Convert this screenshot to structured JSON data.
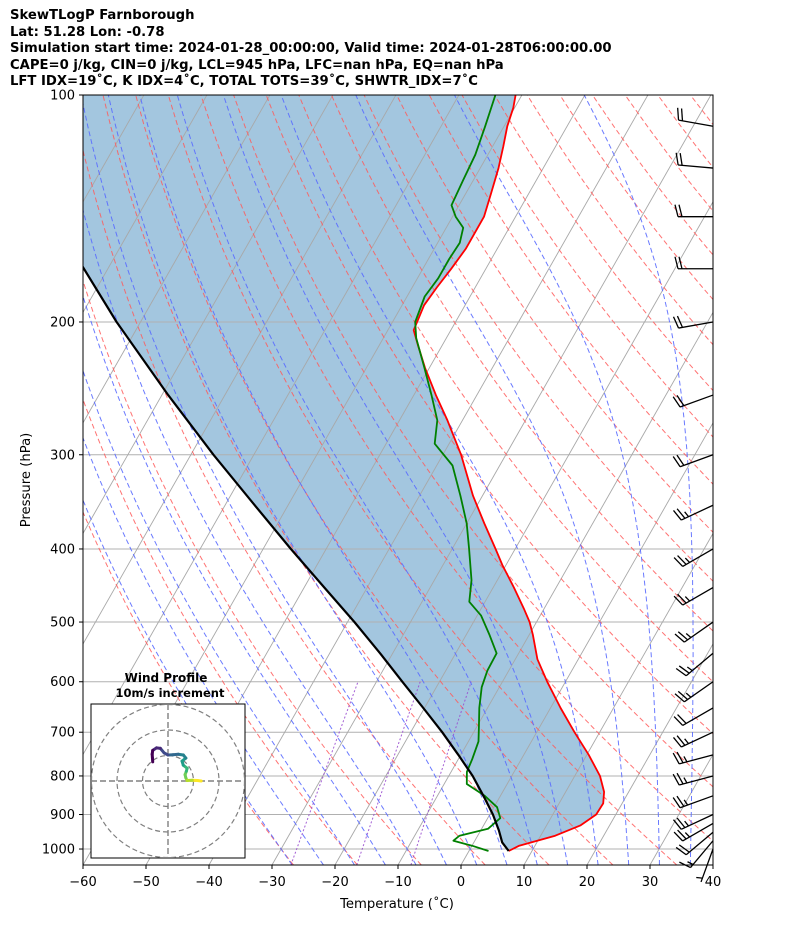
{
  "header": {
    "line1": "SkewTLogP Farnborough",
    "line2": "Lat: 51.28   Lon: -0.78",
    "line3": "Simulation start time: 2024-01-28_00:00:00, Valid time: 2024-01-28T06:00:00.00",
    "line4": "CAPE=0 j/kg, CIN=0 j/kg, LCL=945 hPa, LFC=nan hPa, EQ=nan hPa",
    "line5": "LFT IDX=19˚C, K IDX=4˚C, TOTAL TOTS=39˚C, SHWTR_IDX=7˚C"
  },
  "chart_data": {
    "type": "line",
    "title": "SkewTLogP Farnborough",
    "xlabel": "Temperature (˚C)",
    "ylabel": "Pressure (hPa)",
    "xlim": [
      -60,
      40
    ],
    "ylim": [
      1050,
      100
    ],
    "y_scale": "log",
    "x_ticks": [
      "−60",
      "−50",
      "−40",
      "−30",
      "−20",
      "−10",
      "0",
      "10",
      "20",
      "30",
      "40"
    ],
    "y_ticks": [
      "100",
      "200",
      "300",
      "400",
      "500",
      "600",
      "700",
      "800",
      "900",
      "1000"
    ],
    "grid": true,
    "shaded_region_color": "#a3c6df",
    "series": [
      {
        "color": "#ff0000",
        "style": "solid",
        "values": [
          [
            1006,
            6.3
          ],
          [
            990,
            7.5
          ],
          [
            960,
            12.3
          ],
          [
            930,
            15.4
          ],
          [
            900,
            16.9
          ],
          [
            870,
            17.0
          ],
          [
            840,
            16.1
          ],
          [
            800,
            14.0
          ],
          [
            750,
            10.3
          ],
          [
            700,
            6.0
          ],
          [
            650,
            1.6
          ],
          [
            600,
            -2.9
          ],
          [
            560,
            -6.5
          ],
          [
            520,
            -9.4
          ],
          [
            500,
            -11.1
          ],
          [
            480,
            -13.2
          ],
          [
            450,
            -16.7
          ],
          [
            420,
            -20.6
          ],
          [
            400,
            -23.1
          ],
          [
            370,
            -27.2
          ],
          [
            340,
            -31.5
          ],
          [
            300,
            -37.1
          ],
          [
            270,
            -42.4
          ],
          [
            250,
            -46.5
          ],
          [
            230,
            -50.7
          ],
          [
            215,
            -53.8
          ],
          [
            205,
            -55.9
          ],
          [
            190,
            -56.5
          ],
          [
            180,
            -56.1
          ],
          [
            170,
            -55.5
          ],
          [
            160,
            -55.0
          ],
          [
            145,
            -55.0
          ],
          [
            135,
            -56.0
          ],
          [
            125,
            -57.1
          ],
          [
            117,
            -58.3
          ],
          [
            110,
            -59.5
          ],
          [
            104,
            -60.2
          ],
          [
            100,
            -61.0
          ]
        ]
      },
      {
        "color": "#008000",
        "style": "solid",
        "values": [
          [
            1006,
            3.1
          ],
          [
            990,
            0.0
          ],
          [
            975,
            -3.4
          ],
          [
            960,
            -2.9
          ],
          [
            940,
            1.0
          ],
          [
            910,
            2.0
          ],
          [
            880,
            0.5
          ],
          [
            850,
            -2.5
          ],
          [
            820,
            -6.4
          ],
          [
            790,
            -7.5
          ],
          [
            760,
            -7.8
          ],
          [
            720,
            -8.4
          ],
          [
            690,
            -9.6
          ],
          [
            650,
            -11.3
          ],
          [
            610,
            -12.8
          ],
          [
            580,
            -13.4
          ],
          [
            550,
            -13.5
          ],
          [
            520,
            -16.3
          ],
          [
            490,
            -19.4
          ],
          [
            470,
            -22.5
          ],
          [
            440,
            -24.1
          ],
          [
            400,
            -27.3
          ],
          [
            370,
            -30.0
          ],
          [
            340,
            -33.5
          ],
          [
            310,
            -37.5
          ],
          [
            290,
            -42.3
          ],
          [
            270,
            -44.0
          ],
          [
            250,
            -47.2
          ],
          [
            230,
            -50.8
          ],
          [
            210,
            -54.8
          ],
          [
            200,
            -56.4
          ],
          [
            185,
            -57.2
          ],
          [
            175,
            -56.7
          ],
          [
            165,
            -56.7
          ],
          [
            157,
            -56.5
          ],
          [
            150,
            -57.3
          ],
          [
            145,
            -59.5
          ],
          [
            140,
            -61.2
          ],
          [
            130,
            -61.6
          ],
          [
            120,
            -62.0
          ],
          [
            110,
            -63.0
          ],
          [
            100,
            -64.2
          ]
        ]
      },
      {
        "color": "#000000",
        "style": "solid",
        "values": [
          [
            1006,
            6.3
          ],
          [
            980,
            4.5
          ],
          [
            945,
            2.9
          ],
          [
            900,
            0.5
          ],
          [
            850,
            -2.7
          ],
          [
            800,
            -6.2
          ],
          [
            750,
            -10.4
          ],
          [
            700,
            -15.0
          ],
          [
            650,
            -20.2
          ],
          [
            600,
            -25.9
          ],
          [
            550,
            -32.0
          ],
          [
            500,
            -38.9
          ],
          [
            450,
            -46.8
          ],
          [
            400,
            -55.6
          ],
          [
            350,
            -65.3
          ],
          [
            300,
            -76.4
          ],
          [
            250,
            -89.0
          ],
          [
            200,
            -103.8
          ],
          [
            150,
            -121.5
          ],
          [
            100,
            -143.6
          ]
        ]
      }
    ],
    "wind_barbs": [
      {
        "p": 1000,
        "dir": 200,
        "speed_kt": 5
      },
      {
        "p": 975,
        "dir": 220,
        "speed_kt": 15
      },
      {
        "p": 950,
        "dir": 230,
        "speed_kt": 20
      },
      {
        "p": 925,
        "dir": 240,
        "speed_kt": 25
      },
      {
        "p": 900,
        "dir": 245,
        "speed_kt": 25
      },
      {
        "p": 850,
        "dir": 250,
        "speed_kt": 25
      },
      {
        "p": 800,
        "dir": 255,
        "speed_kt": 25
      },
      {
        "p": 750,
        "dir": 255,
        "speed_kt": 25
      },
      {
        "p": 700,
        "dir": 245,
        "speed_kt": 25
      },
      {
        "p": 650,
        "dir": 240,
        "speed_kt": 20
      },
      {
        "p": 600,
        "dir": 235,
        "speed_kt": 25
      },
      {
        "p": 550,
        "dir": 230,
        "speed_kt": 25
      },
      {
        "p": 500,
        "dir": 235,
        "speed_kt": 25
      },
      {
        "p": 450,
        "dir": 240,
        "speed_kt": 25
      },
      {
        "p": 400,
        "dir": 240,
        "speed_kt": 25
      },
      {
        "p": 350,
        "dir": 245,
        "speed_kt": 25
      },
      {
        "p": 300,
        "dir": 250,
        "speed_kt": 20
      },
      {
        "p": 250,
        "dir": 250,
        "speed_kt": 20
      },
      {
        "p": 200,
        "dir": 260,
        "speed_kt": 20
      },
      {
        "p": 170,
        "dir": 270,
        "speed_kt": 20
      },
      {
        "p": 145,
        "dir": 270,
        "speed_kt": 20
      },
      {
        "p": 125,
        "dir": 275,
        "speed_kt": 20
      },
      {
        "p": 110,
        "dir": 280,
        "speed_kt": 20
      }
    ],
    "inset": {
      "title": "Wind Profile",
      "subtitle": "10m/s increment",
      "ring_increment_ms": 10,
      "hodograph_uv": [
        [
          13.0,
          0.0
        ],
        [
          11.5,
          0.2
        ],
        [
          9.5,
          0.3
        ],
        [
          7.5,
          0.2
        ],
        [
          7.0,
          1.2
        ],
        [
          6.7,
          2.5
        ],
        [
          7.2,
          3.8
        ],
        [
          7.5,
          5.0
        ],
        [
          6.0,
          6.2
        ],
        [
          5.5,
          7.8
        ],
        [
          7.0,
          9.0
        ],
        [
          6.0,
          10.2
        ],
        [
          4.0,
          10.5
        ],
        [
          2.0,
          10.3
        ],
        [
          0.0,
          10.2
        ],
        [
          -1.5,
          11.0
        ],
        [
          -3.0,
          12.8
        ],
        [
          -4.5,
          13.0
        ],
        [
          -6.0,
          12.0
        ],
        [
          -6.2,
          10.5
        ],
        [
          -6.1,
          9.0
        ],
        [
          -6.0,
          7.5
        ]
      ]
    }
  }
}
